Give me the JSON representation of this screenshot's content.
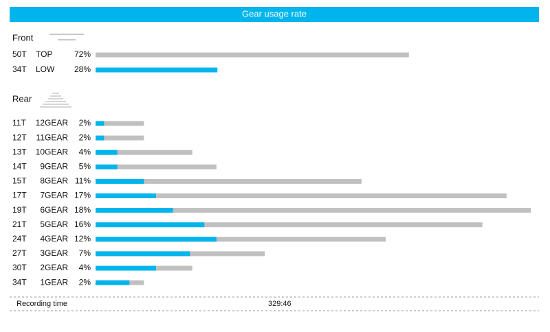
{
  "header": {
    "title": "Gear usage rate"
  },
  "front": {
    "label": "Front",
    "xlim": [
      0,
      100
    ],
    "base_color": "#c0c0c0",
    "accent_color": "#00b4ec",
    "rows": [
      {
        "teeth": "50T",
        "gear": "TOP",
        "value": 72,
        "label": "72%",
        "accent": false
      },
      {
        "teeth": "34T",
        "gear": "LOW",
        "value": 28,
        "label": "28%",
        "accent": true
      }
    ]
  },
  "rear": {
    "label": "Rear",
    "xlim": [
      0,
      18
    ],
    "base_color": "#c0c0c0",
    "accent_color": "#00b4ec",
    "rows": [
      {
        "teeth": "11T",
        "gear": "12GEAR",
        "value": 2,
        "label": "2%",
        "low": 0.35
      },
      {
        "teeth": "12T",
        "gear": "11GEAR",
        "value": 2,
        "label": "2%",
        "low": 0.35
      },
      {
        "teeth": "13T",
        "gear": "10GEAR",
        "value": 4,
        "label": "4%",
        "low": 0.9
      },
      {
        "teeth": "14T",
        "gear": "9GEAR",
        "value": 5,
        "label": "5%",
        "low": 0.9
      },
      {
        "teeth": "15T",
        "gear": "8GEAR",
        "value": 11,
        "label": "11%",
        "low": 2
      },
      {
        "teeth": "17T",
        "gear": "7GEAR",
        "value": 17,
        "label": "17%",
        "low": 2.5
      },
      {
        "teeth": "19T",
        "gear": "6GEAR",
        "value": 18,
        "label": "18%",
        "low": 3.2
      },
      {
        "teeth": "21T",
        "gear": "5GEAR",
        "value": 16,
        "label": "16%",
        "low": 4.5
      },
      {
        "teeth": "24T",
        "gear": "4GEAR",
        "value": 12,
        "label": "12%",
        "low": 5
      },
      {
        "teeth": "27T",
        "gear": "3GEAR",
        "value": 7,
        "label": "7%",
        "low": 3.9
      },
      {
        "teeth": "30T",
        "gear": "2GEAR",
        "value": 4,
        "label": "4%",
        "low": 2.5
      },
      {
        "teeth": "34T",
        "gear": "1GEAR",
        "value": 2,
        "label": "2%",
        "low": 1.4
      }
    ]
  },
  "footer": {
    "label": "Recording time",
    "value": "329:46"
  }
}
